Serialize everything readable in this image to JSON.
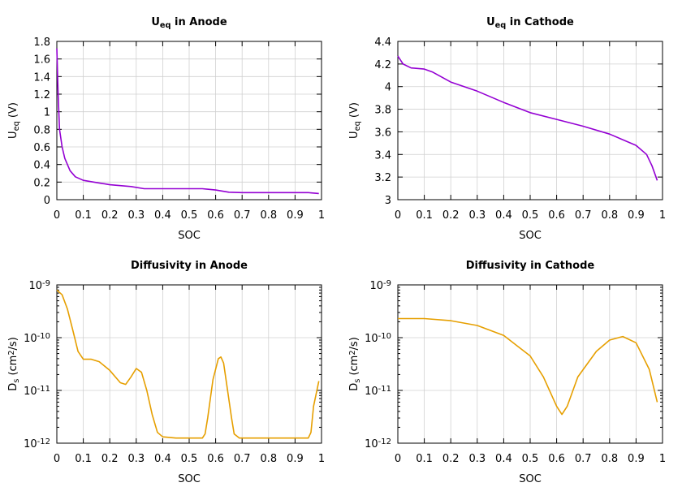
{
  "chart_data": [
    {
      "type": "line",
      "title": {
        "main": "U",
        "sub": "eq",
        "rest": " in Anode"
      },
      "xlabel": "SOC",
      "ylabel": {
        "main": "U",
        "sub": "eq",
        "rest": " (V)"
      },
      "xlim": [
        0,
        1
      ],
      "ylim": [
        0,
        1.8
      ],
      "yscale": "linear",
      "grid": true,
      "xticks": [
        "0",
        "0.1",
        "0.2",
        "0.3",
        "0.4",
        "0.5",
        "0.6",
        "0.7",
        "0.8",
        "0.9",
        "1"
      ],
      "yticks": [
        "0",
        "0.2",
        "0.4",
        "0.6",
        "0.8",
        "1",
        "1.2",
        "1.4",
        "1.6",
        "1.8"
      ],
      "color": "#9400d3",
      "x": [
        0,
        0.005,
        0.01,
        0.02,
        0.03,
        0.05,
        0.07,
        0.1,
        0.15,
        0.2,
        0.28,
        0.33,
        0.4,
        0.55,
        0.6,
        0.65,
        0.7,
        0.9,
        0.95,
        0.99
      ],
      "y": [
        1.72,
        1.2,
        0.8,
        0.6,
        0.47,
        0.33,
        0.26,
        0.22,
        0.195,
        0.17,
        0.15,
        0.125,
        0.125,
        0.125,
        0.11,
        0.085,
        0.08,
        0.08,
        0.08,
        0.07
      ]
    },
    {
      "type": "line",
      "title": {
        "main": "U",
        "sub": "eq",
        "rest": " in Cathode"
      },
      "xlabel": "SOC",
      "ylabel": {
        "main": "U",
        "sub": "eq",
        "rest": " (V)"
      },
      "xlim": [
        0,
        1
      ],
      "ylim": [
        3,
        4.4
      ],
      "yscale": "linear",
      "grid": true,
      "xticks": [
        "0",
        "0.1",
        "0.2",
        "0.3",
        "0.4",
        "0.5",
        "0.6",
        "0.7",
        "0.8",
        "0.9",
        "1"
      ],
      "yticks": [
        "3",
        "3.2",
        "3.4",
        "3.6",
        "3.8",
        "4",
        "4.2",
        "4.4"
      ],
      "color": "#9400d3",
      "x": [
        0,
        0.02,
        0.05,
        0.1,
        0.13,
        0.2,
        0.3,
        0.4,
        0.5,
        0.6,
        0.7,
        0.8,
        0.9,
        0.94,
        0.96,
        0.98
      ],
      "y": [
        4.27,
        4.2,
        4.165,
        4.155,
        4.13,
        4.04,
        3.96,
        3.86,
        3.77,
        3.71,
        3.65,
        3.58,
        3.48,
        3.4,
        3.3,
        3.17
      ]
    },
    {
      "type": "line",
      "title": {
        "main": "Diffusivity in Anode",
        "sub": "",
        "rest": ""
      },
      "xlabel": "SOC",
      "ylabel": {
        "main": "D",
        "sub": "s",
        "rest": " (cm",
        "sup": "2",
        "tail": "/s)"
      },
      "xlim": [
        0,
        1
      ],
      "ylim": [
        1e-12,
        1e-09
      ],
      "yscale": "log",
      "grid": true,
      "xticks": [
        "0",
        "0.1",
        "0.2",
        "0.3",
        "0.4",
        "0.5",
        "0.6",
        "0.7",
        "0.8",
        "0.9",
        "1"
      ],
      "yticks": [
        {
          "base": "10",
          "exp": "-12"
        },
        {
          "base": "10",
          "exp": "-11"
        },
        {
          "base": "10",
          "exp": "-10"
        },
        {
          "base": "10",
          "exp": "-9"
        }
      ],
      "color": "#e69f00",
      "x": [
        0,
        0.02,
        0.04,
        0.06,
        0.08,
        0.1,
        0.13,
        0.16,
        0.2,
        0.24,
        0.26,
        0.28,
        0.3,
        0.32,
        0.34,
        0.36,
        0.38,
        0.4,
        0.45,
        0.55,
        0.56,
        0.57,
        0.59,
        0.61,
        0.62,
        0.63,
        0.645,
        0.66,
        0.67,
        0.69,
        0.95,
        0.96,
        0.97,
        0.99
      ],
      "y": [
        8e-10,
        6.5e-10,
        3.5e-10,
        1.4e-10,
        5.5e-11,
        3.9e-11,
        3.9e-11,
        3.5e-11,
        2.4e-11,
        1.4e-11,
        1.3e-11,
        1.8e-11,
        2.6e-11,
        2.2e-11,
        1e-11,
        3.5e-12,
        1.6e-12,
        1.32e-12,
        1.25e-12,
        1.25e-12,
        1.5e-12,
        3e-12,
        1.6e-11,
        4e-11,
        4.3e-11,
        3.3e-11,
        1e-11,
        3e-12,
        1.5e-12,
        1.25e-12,
        1.25e-12,
        1.6e-12,
        5e-12,
        1.5e-11
      ]
    },
    {
      "type": "line",
      "title": {
        "main": "Diffusivity in Cathode",
        "sub": "",
        "rest": ""
      },
      "xlabel": "SOC",
      "ylabel": {
        "main": "D",
        "sub": "s",
        "rest": " (cm",
        "sup": "2",
        "tail": "/s)"
      },
      "xlim": [
        0,
        1
      ],
      "ylim": [
        1e-12,
        1e-09
      ],
      "yscale": "log",
      "grid": true,
      "xticks": [
        "0",
        "0.1",
        "0.2",
        "0.3",
        "0.4",
        "0.5",
        "0.6",
        "0.7",
        "0.8",
        "0.9",
        "1"
      ],
      "yticks": [
        {
          "base": "10",
          "exp": "-12"
        },
        {
          "base": "10",
          "exp": "-11"
        },
        {
          "base": "10",
          "exp": "-10"
        },
        {
          "base": "10",
          "exp": "-9"
        }
      ],
      "color": "#e69f00",
      "x": [
        0,
        0.1,
        0.2,
        0.3,
        0.4,
        0.5,
        0.55,
        0.6,
        0.62,
        0.64,
        0.68,
        0.75,
        0.8,
        0.85,
        0.9,
        0.95,
        0.98
      ],
      "y": [
        2.3e-10,
        2.3e-10,
        2.1e-10,
        1.7e-10,
        1.1e-10,
        4.5e-11,
        1.8e-11,
        5e-12,
        3.5e-12,
        5e-12,
        1.8e-11,
        5.5e-11,
        9e-11,
        1.05e-10,
        8e-11,
        2.5e-11,
        6e-12
      ]
    }
  ]
}
